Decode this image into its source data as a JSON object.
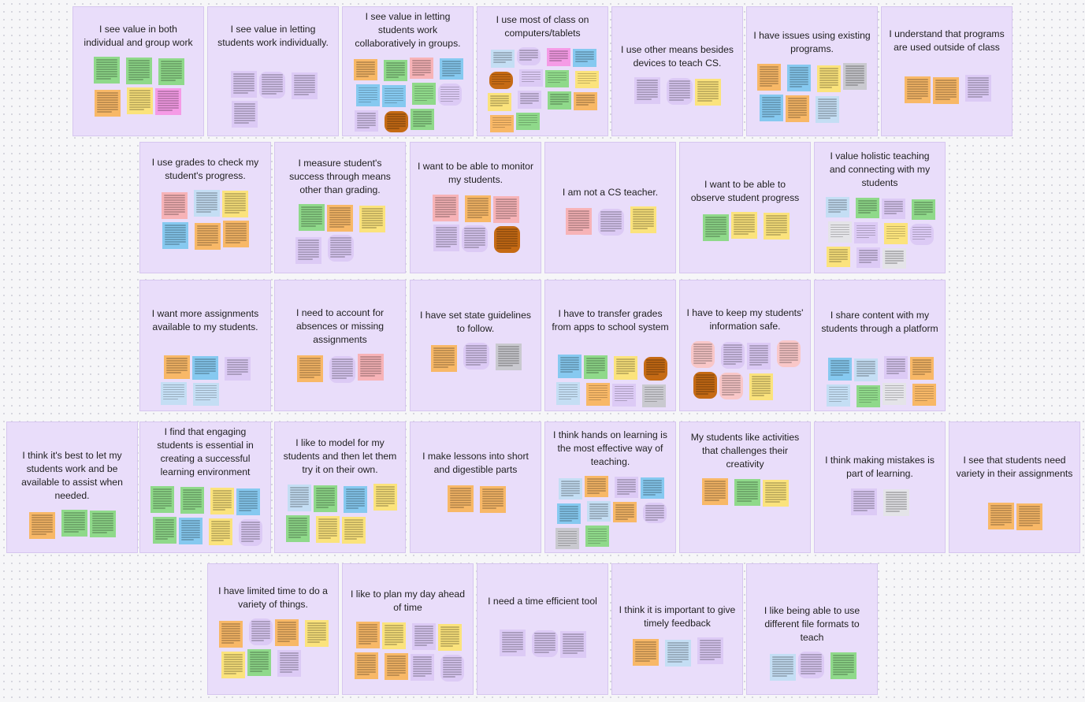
{
  "canvas": {
    "clusters": [
      {
        "id": "c01",
        "title": "I see value in both individual and group work",
        "notes": [
          "green",
          "green",
          "green",
          "orange",
          "yellow",
          "magenta"
        ]
      },
      {
        "id": "c02",
        "title": "I see value in letting students work individually.",
        "notes": [
          "lilac",
          "lilac",
          "lilac",
          "lilac"
        ]
      },
      {
        "id": "c03",
        "title": "I see value in letting students work collaboratively in groups.",
        "notes": [
          "orange",
          "green",
          "pink",
          "blue",
          "blue",
          "blue",
          "green",
          "lilac",
          "lilac",
          "brown",
          "green"
        ]
      },
      {
        "id": "c04",
        "title": "I use most of class on computers/tablets",
        "notes": [
          "lblue",
          "lilac",
          "magenta",
          "blue",
          "brown",
          "lilac",
          "green",
          "yellow",
          "yellow",
          "lilac",
          "green",
          "orange",
          "orange",
          "green"
        ]
      },
      {
        "id": "c05",
        "title": "I use other means besides devices to teach CS.",
        "notes": [
          "lilac",
          "lilac",
          "yellow"
        ]
      },
      {
        "id": "c06",
        "title": "I have issues using existing programs.",
        "notes": [
          "orange",
          "blue",
          "yellow",
          "gray",
          "blue",
          "orange",
          "lblue"
        ]
      },
      {
        "id": "c07",
        "title": "I understand that programs are used outside of class",
        "notes": [
          "orange",
          "orange",
          "lilac"
        ]
      },
      {
        "id": "c08",
        "title": "I use grades to check my student's progress.",
        "notes": [
          "pink",
          "lblue",
          "yellow",
          "blue",
          "orange",
          "orange"
        ]
      },
      {
        "id": "c09",
        "title": "I measure student's success through means other than grading.",
        "notes": [
          "green",
          "orange",
          "yellow",
          "lilac",
          "lilac"
        ]
      },
      {
        "id": "c10",
        "title": "I want to be able to monitor my students.",
        "notes": [
          "pink",
          "orange",
          "pink",
          "lilac",
          "lilac",
          "brown"
        ]
      },
      {
        "id": "c11",
        "title": "I am not a CS teacher.",
        "notes": [
          "pink",
          "lilac",
          "yellow"
        ]
      },
      {
        "id": "c12",
        "title": "I want to be able to observe student progress",
        "notes": [
          "green",
          "yellow",
          "yellow"
        ]
      },
      {
        "id": "c13",
        "title": "I value holistic teaching and connecting with my students",
        "notes": [
          "lblue",
          "green",
          "lilac",
          "green",
          "lgray",
          "lilac",
          "yellow",
          "lilac",
          "yellow",
          "lilac",
          "lgray"
        ]
      },
      {
        "id": "c14",
        "title": "I want more assignments available to my students.",
        "notes": [
          "orange",
          "blue",
          "lilac",
          "lblue",
          "lblue"
        ]
      },
      {
        "id": "c15",
        "title": "I need to account for absences or missing assignments",
        "notes": [
          "orange",
          "lilac",
          "pink"
        ]
      },
      {
        "id": "c16",
        "title": "I have set state guidelines to follow.",
        "notes": [
          "orange",
          "lilac",
          "gray"
        ]
      },
      {
        "id": "c17",
        "title": "I have to transfer grades from apps to school system",
        "notes": [
          "blue",
          "green",
          "yellow",
          "brown",
          "lblue",
          "orange",
          "lilac",
          "gray"
        ]
      },
      {
        "id": "c18",
        "title": "I have to keep my students' information safe.",
        "notes": [
          "lpink",
          "lilac",
          "lilac",
          "lpink",
          "brown",
          "lpink",
          "yellow"
        ]
      },
      {
        "id": "c19",
        "title": "I share content with my students through a platform",
        "notes": [
          "blue",
          "lblue",
          "lilac",
          "orange",
          "lblue",
          "green",
          "lgray",
          "orange"
        ]
      },
      {
        "id": "c20",
        "title": "I think it's best to let my students work and be available to assist when needed.",
        "notes": [
          "orange",
          "green",
          "green"
        ]
      },
      {
        "id": "c21",
        "title": "I find that engaging students is essential in creating a successful learning environment",
        "notes": [
          "green",
          "green",
          "yellow",
          "blue",
          "green",
          "blue",
          "yellow",
          "lilac"
        ]
      },
      {
        "id": "c22",
        "title": "I like to model for my students and then let them try it on their own.",
        "notes": [
          "lblue",
          "green",
          "blue",
          "yellow",
          "green",
          "yellow",
          "yellow"
        ]
      },
      {
        "id": "c23",
        "title": "I make lessons into short and digestible parts",
        "notes": [
          "orange",
          "orange"
        ]
      },
      {
        "id": "c24",
        "title": "I think hands on learning is the most effective way of teaching.",
        "notes": [
          "lblue",
          "orange",
          "lilac",
          "blue",
          "blue",
          "lblue",
          "orange",
          "lilac",
          "gray",
          "green"
        ]
      },
      {
        "id": "c25",
        "title": "My students like activities that challenges their creativity",
        "notes": [
          "orange",
          "green",
          "yellow"
        ]
      },
      {
        "id": "c26",
        "title": "I think making mistakes is part of learning.",
        "notes": [
          "lilac",
          "lgray"
        ]
      },
      {
        "id": "c27",
        "title": "I see that students need variety in their assignments",
        "notes": [
          "orange",
          "orange"
        ]
      },
      {
        "id": "c28",
        "title": "I have limited time to do a variety of things.",
        "notes": [
          "orange",
          "lilac",
          "orange",
          "yellow",
          "yellow",
          "green",
          "lilac"
        ]
      },
      {
        "id": "c29",
        "title": "I like to plan my day ahead of time",
        "notes": [
          "orange",
          "yellow",
          "lilac",
          "yellow",
          "orange",
          "orange",
          "lilac",
          "lilac"
        ]
      },
      {
        "id": "c30",
        "title": "I need a time efficient tool",
        "notes": [
          "lilac",
          "lilac",
          "lilac"
        ]
      },
      {
        "id": "c31",
        "title": "I think it is important to give timely feedback",
        "notes": [
          "orange",
          "lblue",
          "lilac"
        ]
      },
      {
        "id": "c32",
        "title": "I like being able to use different file formats to teach",
        "notes": [
          "lblue",
          "lilac",
          "green"
        ]
      }
    ]
  }
}
